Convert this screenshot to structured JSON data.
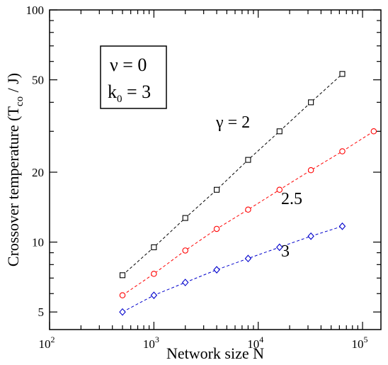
{
  "chart_data": {
    "type": "line",
    "xscale": "log",
    "yscale": "log",
    "xlim": [
      100,
      150000
    ],
    "ylim": [
      4.2,
      100
    ],
    "grid": false,
    "xlabel": "Network size  N",
    "ylabel": "Crossover temperature  (T",
    "ylabel_sub": "co",
    "ylabel_tail": " / J)",
    "x_ticks": [
      {
        "base": "10",
        "exp": "2",
        "value": 100
      },
      {
        "base": "10",
        "exp": "3",
        "value": 1000
      },
      {
        "base": "10",
        "exp": "4",
        "value": 10000
      },
      {
        "base": "10",
        "exp": "5",
        "value": 100000
      }
    ],
    "y_ticks": [
      {
        "label": "5",
        "value": 5
      },
      {
        "label": "10",
        "value": 10
      },
      {
        "label": "20",
        "value": 20
      },
      {
        "label": "50",
        "value": 50
      },
      {
        "label": "100",
        "value": 100
      }
    ],
    "annotation_box": {
      "line1": "ν = 0",
      "line2_main": "k",
      "line2_sub": "0",
      "line2_tail": " = 3"
    },
    "series": [
      {
        "name": "γ = 2",
        "color": "#000000",
        "marker": "square",
        "x": [
          500,
          1000,
          2000,
          4000,
          8000,
          16000,
          32000,
          64000
        ],
        "y": [
          7.2,
          9.5,
          12.7,
          16.8,
          22.6,
          30.0,
          40.0,
          53.0
        ]
      },
      {
        "name": "2.5",
        "color": "#ff0000",
        "marker": "circle",
        "x": [
          500,
          1000,
          2000,
          4000,
          8000,
          16000,
          32000,
          64000,
          128000
        ],
        "y": [
          5.9,
          7.3,
          9.2,
          11.4,
          13.8,
          16.8,
          20.4,
          24.6,
          30.0
        ]
      },
      {
        "name": "3",
        "color": "#0000cc",
        "marker": "diamond",
        "x": [
          500,
          1000,
          2000,
          4000,
          8000,
          16000,
          32000,
          64000
        ],
        "y": [
          5.0,
          5.9,
          6.7,
          7.6,
          8.5,
          9.5,
          10.6,
          11.7
        ]
      }
    ]
  }
}
